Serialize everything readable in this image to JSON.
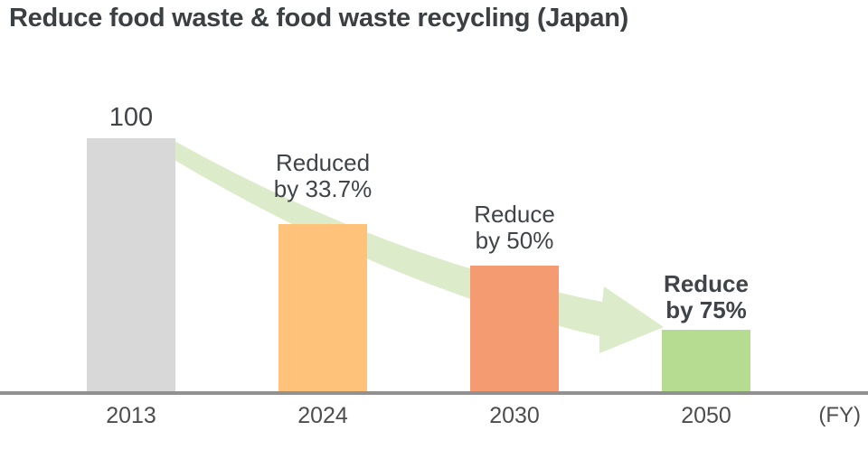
{
  "chart_data": {
    "type": "bar",
    "title": "Reduce food waste & food waste recycling (Japan)",
    "categories": [
      "2013",
      "2024",
      "2030",
      "2050"
    ],
    "values": [
      100,
      66.3,
      50,
      25
    ],
    "xlabel": "(FY)",
    "ylabel": "",
    "ylim": [
      0,
      100
    ],
    "grid": false,
    "legend": false,
    "bars": [
      {
        "year": "2013",
        "value": 100,
        "label": "100",
        "color": "#d8d8d8",
        "bold": false
      },
      {
        "year": "2024",
        "value": 66.3,
        "label": "Reduced\nby 33.7%",
        "color": "#fec27a",
        "bold": false
      },
      {
        "year": "2030",
        "value": 50,
        "label": "Reduce\nby 50%",
        "color": "#f49b72",
        "bold": false
      },
      {
        "year": "2050",
        "value": 25,
        "label": "Reduce\nby 75%",
        "color": "#b6dc92",
        "bold": true
      }
    ],
    "annotations": [
      {
        "name": "downward-trend-arrow",
        "description": "pale green curved arrow sweeping down from the 2013 bar to the 2050 bar",
        "color": "#dcebc9"
      }
    ]
  },
  "colors": {
    "background": "#ffffff",
    "title_text": "#3c4043",
    "label_text": "#404448",
    "tick_text": "#4d4d4d",
    "axis_line": "#919191",
    "arrow": "#dcebc9"
  }
}
